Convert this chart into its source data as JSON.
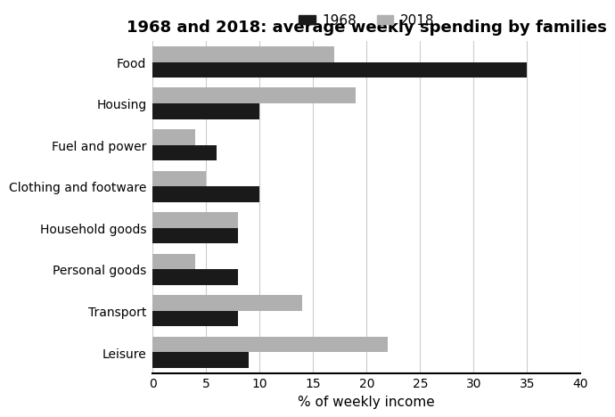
{
  "title": "1968 and 2018: average weekly spending by families",
  "xlabel": "% of weekly income",
  "categories": [
    "Food",
    "Housing",
    "Fuel and power",
    "Clothing and footware",
    "Household goods",
    "Personal goods",
    "Transport",
    "Leisure"
  ],
  "values_1968": [
    35,
    10,
    6,
    10,
    8,
    8,
    8,
    9
  ],
  "values_2018": [
    17,
    19,
    4,
    5,
    8,
    4,
    14,
    22
  ],
  "color_1968": "#1a1a1a",
  "color_2018": "#b0b0b0",
  "xlim": [
    0,
    40
  ],
  "xticks": [
    0,
    5,
    10,
    15,
    20,
    25,
    30,
    35,
    40
  ],
  "legend_labels": [
    "1968",
    "2018"
  ],
  "bar_height": 0.38,
  "title_fontsize": 13,
  "axis_label_fontsize": 11,
  "tick_fontsize": 10,
  "legend_fontsize": 11,
  "background_color": "#ffffff"
}
